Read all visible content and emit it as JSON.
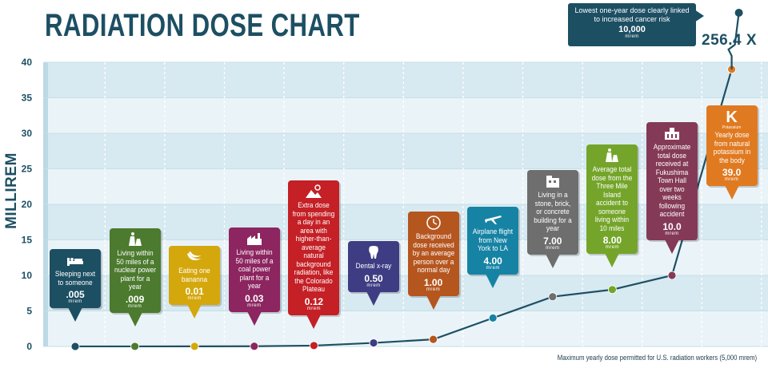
{
  "chart_data": {
    "type": "line",
    "title": "RADIATION DOSE CHART",
    "ylabel": "MILLIREM",
    "ylim": [
      0,
      40
    ],
    "yticks": [
      0,
      5,
      10,
      15,
      20,
      25,
      30,
      35,
      40
    ],
    "footnote": "Maximum yearly dose permitted for U.S. radiation workers (5,000 mrem)",
    "unit": "mrem",
    "points": [
      {
        "desc": "Sleeping next to someone",
        "value": 0.005,
        "label": ".005",
        "color": "#1d4f63",
        "icon": "bed-icon"
      },
      {
        "desc": "Living within 50 miles of a nuclear power plant for a year",
        "value": 0.009,
        "label": ".009",
        "color": "#4c7a2e",
        "icon": "cooling-tower-icon"
      },
      {
        "desc": "Eating one bananna",
        "value": 0.01,
        "label": "0.01",
        "color": "#d4a70d",
        "icon": "banana-icon"
      },
      {
        "desc": "Living within 50 miles of a coal power plant for a year",
        "value": 0.03,
        "label": "0.03",
        "color": "#8c2560",
        "icon": "factory-icon"
      },
      {
        "desc": "Extra dose from spending a day in an area with higher-than-average natural background radiation, like the Colorado Plateau",
        "value": 0.12,
        "label": "0.12",
        "color": "#c42026",
        "icon": "mountain-sun-icon"
      },
      {
        "desc": "Dental x-ray",
        "value": 0.5,
        "label": "0.50",
        "color": "#3e3c82",
        "icon": "tooth-icon"
      },
      {
        "desc": "Background dose received by an average person over a normal day",
        "value": 1.0,
        "label": "1.00",
        "color": "#b5561f",
        "icon": "clock-icon"
      },
      {
        "desc": "Airplane flight from New York to LA",
        "value": 4.0,
        "label": "4.00",
        "color": "#1683a4",
        "icon": "airplane-icon"
      },
      {
        "desc": "Living in a stone, brick, or concrete building for a year",
        "value": 7.0,
        "label": "7.00",
        "color": "#6e6e6e",
        "icon": "building-icon"
      },
      {
        "desc": "Average total dose from the Three Mile Island accident to someone living within 10 miles",
        "value": 8.0,
        "label": "8.00",
        "color": "#74a52a",
        "icon": "cooling-tower-icon"
      },
      {
        "desc": "Approximate total dose received at Fukushima Town Hall over two weeks following accident",
        "value": 10.0,
        "label": "10.0",
        "color": "#843a56",
        "icon": "town-hall-icon"
      },
      {
        "desc": "Yearly dose from natural potassium in the body",
        "value": 39.0,
        "label": "39.0",
        "color": "#e07a21",
        "icon": "potassium-icon",
        "icon_text": "K",
        "icon_sub": "Potassium"
      }
    ],
    "top_callout": {
      "desc": "Lowest one-year dose clearly linked to increased cancer risk",
      "value": 10000,
      "value_label": "10,000",
      "unit": "mrem",
      "multiplier": "256.4 X"
    }
  }
}
